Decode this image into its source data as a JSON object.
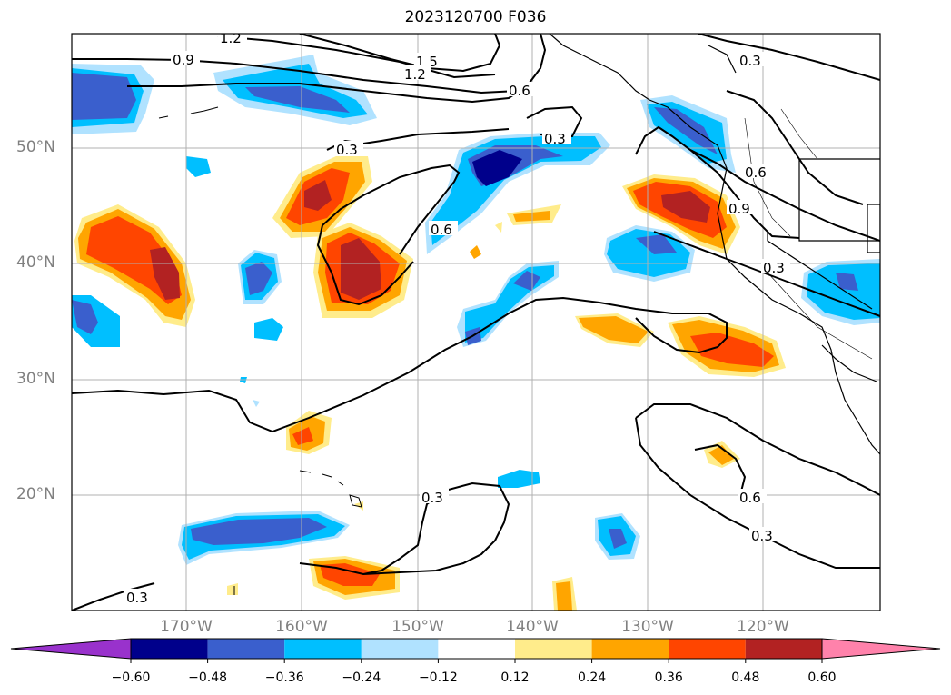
{
  "title": "2023120700 F036",
  "lat_labels": [
    "50°N",
    "40°N",
    "30°N",
    "20°N"
  ],
  "lon_labels": [
    "170°W",
    "160°W",
    "150°W",
    "140°W",
    "130°W",
    "120°W"
  ],
  "contour_labels": [
    "1.2",
    "0.9",
    "1.5",
    "1.2",
    "0.6",
    "0.3",
    "0.3",
    "0.6",
    "0.3",
    "0.6",
    "0.9",
    "0.3",
    "0.3",
    "0.6",
    "0.3",
    "0.3"
  ],
  "colorbar": {
    "ticks": [
      "−0.60",
      "−0.48",
      "−0.36",
      "−0.24",
      "−0.12",
      "0.12",
      "0.24",
      "0.36",
      "0.48",
      "0.60"
    ],
    "colors": [
      "#9932cc",
      "#00008b",
      "#3a5fcd",
      "#00bfff",
      "#b0e2ff",
      "#ffffff",
      "#ffec8b",
      "#ffa500",
      "#ff4500",
      "#b22222",
      "#ff82ab"
    ]
  }
}
